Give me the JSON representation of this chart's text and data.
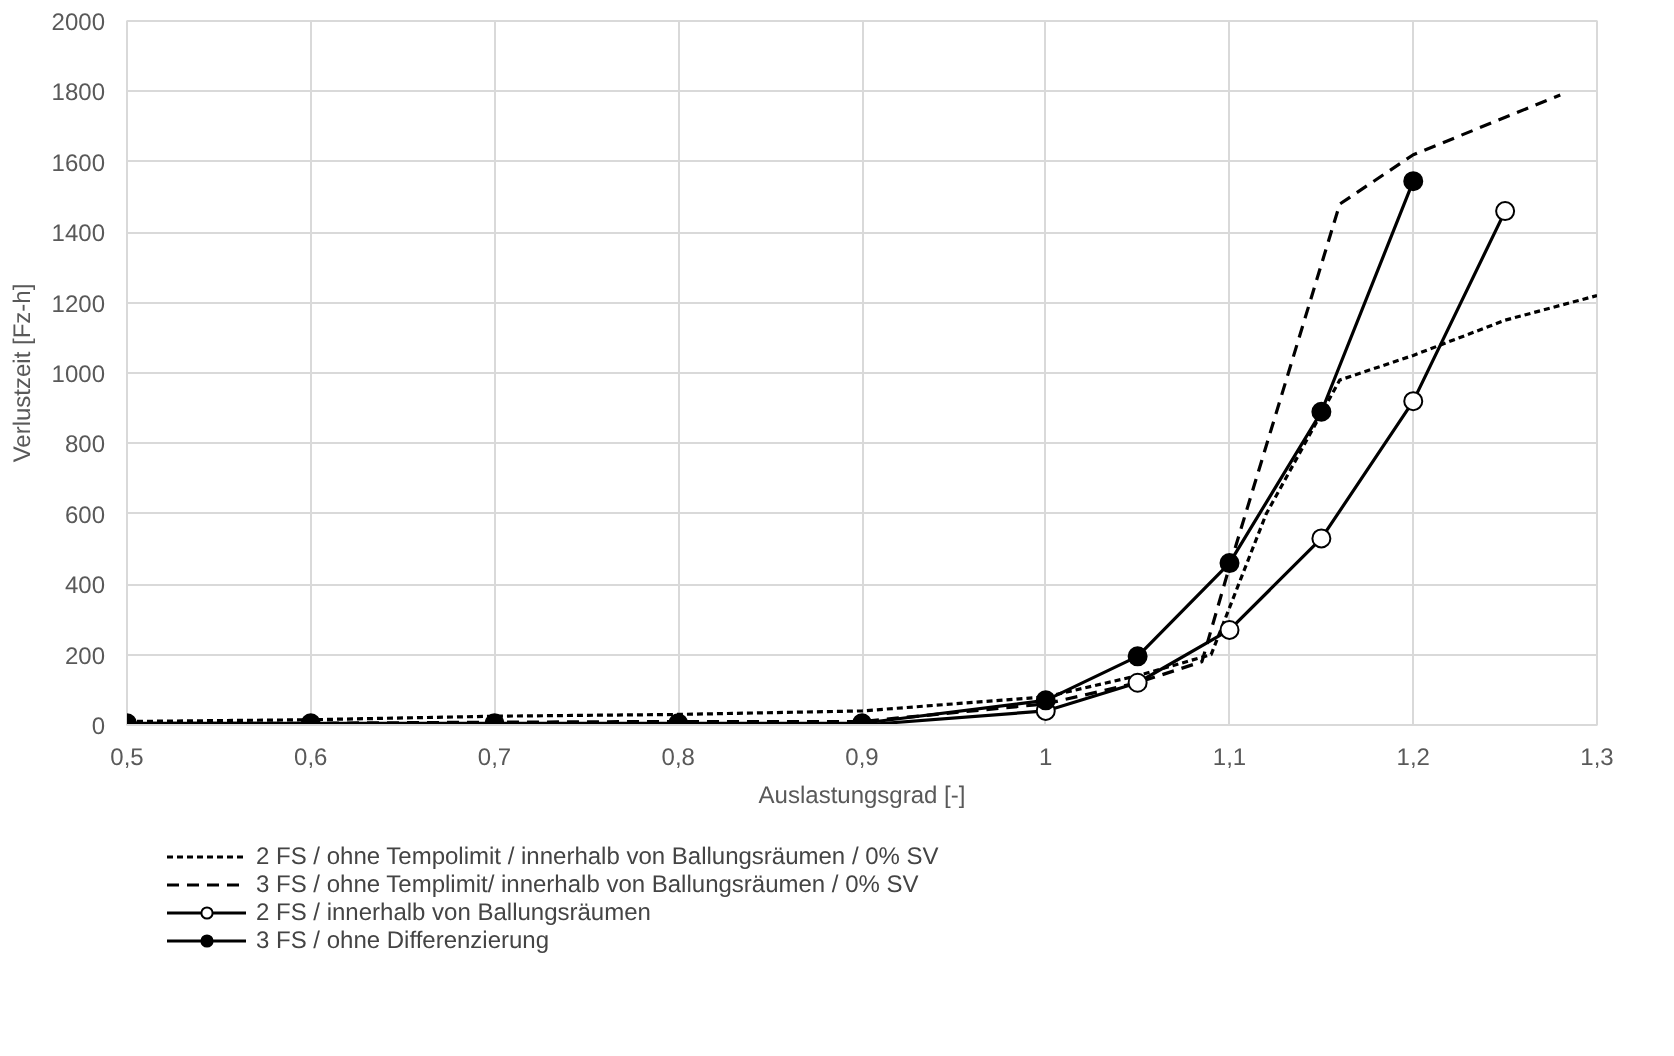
{
  "chart_data": {
    "type": "line",
    "xlabel": "Auslastungsgrad [-]",
    "ylabel": "Verlustzeit [Fz-h]",
    "xlim": [
      0.5,
      1.3
    ],
    "xticks": [
      {
        "value": 0.5,
        "label": "0,5"
      },
      {
        "value": 0.6,
        "label": "0,6"
      },
      {
        "value": 0.7,
        "label": "0,7"
      },
      {
        "value": 0.8,
        "label": "0,8"
      },
      {
        "value": 0.9,
        "label": "0,9"
      },
      {
        "value": 1,
        "label": "1"
      },
      {
        "value": 1.1,
        "label": "1,1"
      },
      {
        "value": 1.2,
        "label": "1,2"
      },
      {
        "value": 1.3,
        "label": "1,3"
      }
    ],
    "ylim": [
      0,
      2000
    ],
    "yticks": [
      0,
      200,
      400,
      600,
      800,
      1000,
      1200,
      1400,
      1600,
      1800,
      2000
    ],
    "grid": true,
    "legend": "bottom",
    "series": [
      {
        "name": "2 FS / ohne Tempolimit / innerhalb von Ballungsräumen / 0% SV",
        "color": "#000000",
        "line_style": "dotted",
        "marker": "none",
        "x": [
          0.5,
          0.6,
          0.7,
          0.8,
          0.9,
          1.0,
          1.05,
          1.09,
          1.12,
          1.16,
          1.2,
          1.25,
          1.3
        ],
        "values": [
          10,
          15,
          25,
          30,
          40,
          80,
          140,
          200,
          600,
          980,
          1050,
          1150,
          1220
        ]
      },
      {
        "name": "3 FS / ohne Templimit/ innerhalb von Ballungsräumen / 0% SV",
        "color": "#000000",
        "line_style": "dashed",
        "marker": "none",
        "x": [
          0.5,
          0.6,
          0.7,
          0.8,
          0.9,
          1.0,
          1.05,
          1.085,
          1.1,
          1.16,
          1.2,
          1.28
        ],
        "values": [
          5,
          5,
          8,
          10,
          10,
          60,
          120,
          180,
          450,
          1480,
          1620,
          1790
        ]
      },
      {
        "name": "2 FS / innerhalb von Ballungsräumen",
        "color": "#000000",
        "line_style": "solid",
        "marker": "circle_open",
        "x": [
          0.5,
          0.6,
          0.7,
          0.8,
          0.9,
          1.0,
          1.05,
          1.1,
          1.15,
          1.2,
          1.25
        ],
        "values": [
          0,
          0,
          0,
          0,
          0,
          40,
          120,
          270,
          530,
          920,
          1460
        ]
      },
      {
        "name": "3 FS / ohne Differenzierung",
        "color": "#000000",
        "line_style": "solid",
        "marker": "circle",
        "x": [
          0.5,
          0.6,
          0.7,
          0.8,
          0.9,
          1.0,
          1.05,
          1.1,
          1.15,
          1.2
        ],
        "values": [
          5,
          5,
          5,
          5,
          5,
          70,
          195,
          460,
          890,
          1545
        ]
      }
    ]
  }
}
